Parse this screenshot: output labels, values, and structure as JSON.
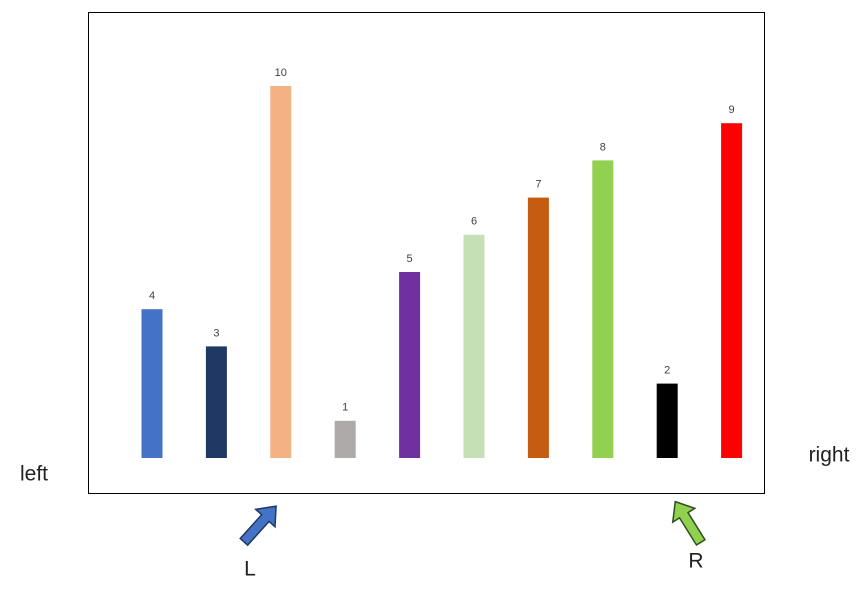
{
  "chart_data": {
    "type": "bar",
    "values": [
      4,
      3,
      10,
      1,
      5,
      6,
      7,
      8,
      2,
      9
    ],
    "colors": [
      "#4472c4",
      "#1f3864",
      "#f4b183",
      "#aeaaaa",
      "#7030a0",
      "#c5e0b4",
      "#c55a11",
      "#92d050",
      "#000000",
      "#ff0000"
    ],
    "annotations": [
      "left",
      "right",
      "L",
      "R"
    ]
  }
}
